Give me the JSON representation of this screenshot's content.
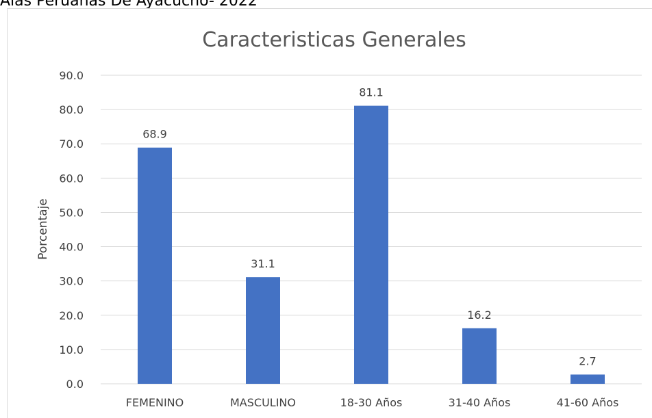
{
  "header_text": "Alas Peruanas De Ayacucho- 2022",
  "chart_data": {
    "type": "bar",
    "title": "Caracteristicas Generales",
    "y_label": "Porcentaje",
    "categories": [
      "FEMENINO",
      "MASCULINO",
      "18-30 Años",
      "31-40 Años",
      "41-60 Años"
    ],
    "values": [
      68.9,
      31.1,
      81.1,
      16.2,
      2.7
    ],
    "color": "#4472c4",
    "ylim": [
      0,
      90
    ],
    "yticks": [
      {
        "value": 0,
        "label": "0.0"
      },
      {
        "value": 10,
        "label": "10.0"
      },
      {
        "value": 20,
        "label": "20.0"
      },
      {
        "value": 30,
        "label": "30.0"
      },
      {
        "value": 40,
        "label": "40.0"
      },
      {
        "value": 50,
        "label": "50.0"
      },
      {
        "value": 60,
        "label": "60.0"
      },
      {
        "value": 70,
        "label": "70.0"
      },
      {
        "value": 80,
        "label": "80.0"
      },
      {
        "value": 90,
        "label": "90.0"
      }
    ],
    "grid": true
  }
}
